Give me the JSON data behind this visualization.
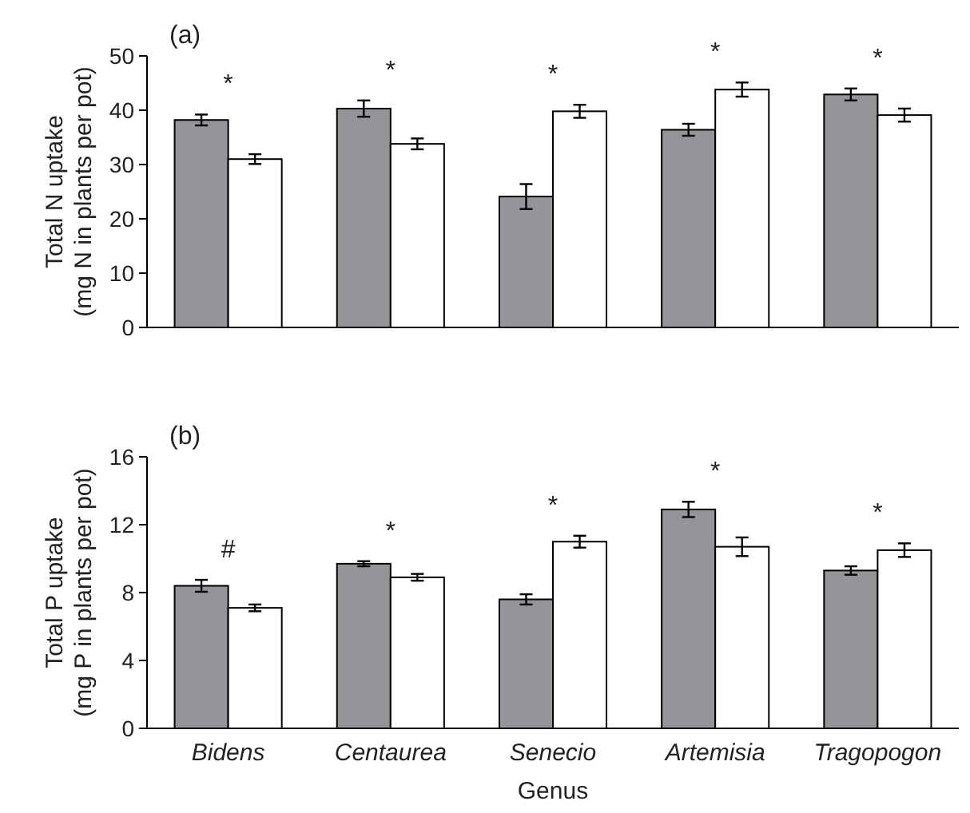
{
  "chart_data": [
    {
      "type": "bar",
      "title": "(a)",
      "ylabel": "Total N uptake\n(mg N in plants per pot)",
      "categories": [
        null,
        null,
        null,
        null,
        null
      ],
      "ylim": [
        0,
        50
      ],
      "yticks": [
        0,
        10,
        20,
        30,
        40,
        50
      ],
      "series": [
        {
          "color": "#939598",
          "values": [
            38.2,
            40.3,
            24.1,
            36.4,
            42.9
          ],
          "errors": [
            1.0,
            1.5,
            2.3,
            1.1,
            1.1
          ]
        },
        {
          "color": "#ffffff",
          "values": [
            31.0,
            33.8,
            39.8,
            43.8,
            39.1
          ],
          "errors": [
            0.9,
            1.0,
            1.2,
            1.3,
            1.2
          ]
        }
      ],
      "annotations": [
        "*",
        "*",
        "*",
        "*",
        "*"
      ]
    },
    {
      "type": "bar",
      "title": "(b)",
      "ylabel": "Total P uptake\n(mg P in plants per pot)",
      "xlabel": "Genus",
      "categories": [
        "Bidens",
        "Centaurea",
        "Senecio",
        "Artemisia",
        "Tragopogon"
      ],
      "ylim": [
        0,
        16
      ],
      "yticks": [
        0,
        4,
        8,
        12,
        16
      ],
      "series": [
        {
          "color": "#939598",
          "values": [
            8.4,
            9.7,
            7.6,
            12.9,
            9.3
          ],
          "errors": [
            0.35,
            0.15,
            0.3,
            0.45,
            0.25
          ]
        },
        {
          "color": "#ffffff",
          "values": [
            7.1,
            8.9,
            11.0,
            10.7,
            10.5
          ],
          "errors": [
            0.2,
            0.2,
            0.35,
            0.55,
            0.4
          ]
        }
      ],
      "annotations": [
        "#",
        "*",
        "*",
        "*",
        "*"
      ]
    }
  ]
}
